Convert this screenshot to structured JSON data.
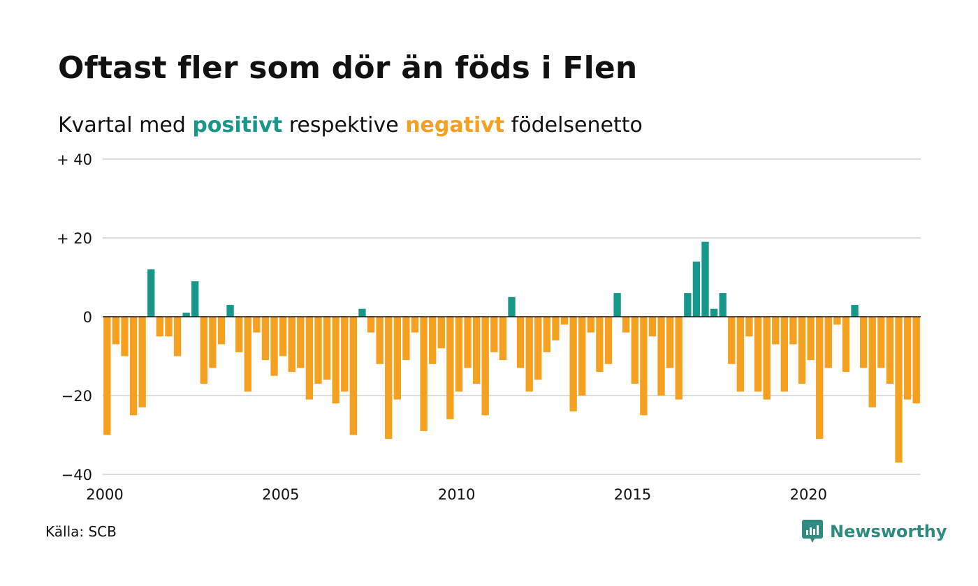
{
  "title": "Oftast fler som dör än föds i Flen",
  "subtitle": {
    "prefix": "Kvartal med ",
    "positive_word": "positivt",
    "middle": " respektive ",
    "negative_word": "negativt",
    "suffix": " födelsenetto"
  },
  "source": "Källa: SCB",
  "brand": "Newsworthy",
  "colors": {
    "positive": "#17968a",
    "negative": "#f6a01f",
    "grid": "#dddddd",
    "axis": "#111111",
    "brand": "#2e8b7f"
  },
  "chart_data": {
    "type": "bar",
    "x_start_year": 2000,
    "periods_per_year": 4,
    "ylim": [
      -40,
      40
    ],
    "y_ticks": [
      40,
      20,
      0,
      -20,
      -40
    ],
    "y_tick_labels": [
      "+ 40",
      "+ 20",
      "0",
      "−20",
      "−40"
    ],
    "x_ticks": [
      2000,
      2005,
      2010,
      2015,
      2020
    ],
    "x_tick_labels": [
      "2000",
      "2005",
      "2010",
      "2015",
      "2020"
    ],
    "grid": true,
    "values": [
      -30,
      -7,
      -10,
      -25,
      -23,
      12,
      -5,
      -5,
      -10,
      1,
      9,
      -17,
      -13,
      -7,
      3,
      -9,
      -19,
      -4,
      -11,
      -15,
      -10,
      -14,
      -13,
      -21,
      -17,
      -16,
      -22,
      -19,
      -30,
      2,
      -4,
      -12,
      -31,
      -21,
      -11,
      -4,
      -29,
      -12,
      -8,
      -26,
      -19,
      -13,
      -17,
      -25,
      -9,
      -11,
      5,
      -13,
      -19,
      -16,
      -9,
      -6,
      -2,
      -24,
      -20,
      -4,
      -14,
      -12,
      6,
      -4,
      -17,
      -25,
      -5,
      -20,
      -13,
      -21,
      6,
      14,
      19,
      2,
      6,
      -12,
      -19,
      -5,
      -19,
      -21,
      -7,
      -19,
      -7,
      -17,
      -11,
      -31,
      -13,
      -2,
      -14,
      3,
      -13,
      -23,
      -13,
      -17,
      -37,
      -21,
      -22
    ]
  }
}
